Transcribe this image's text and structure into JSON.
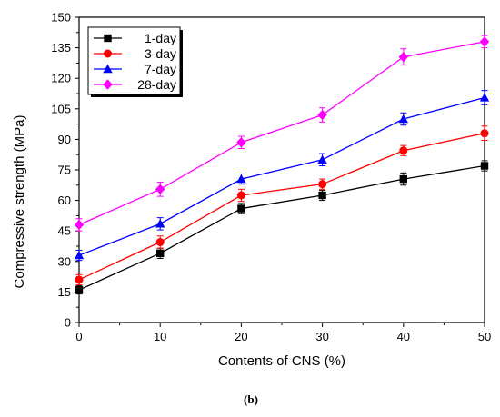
{
  "chart_data": {
    "type": "line",
    "xlabel": "Contents of CNS (%)",
    "ylabel": "Compressive strength (MPa)",
    "x": [
      0,
      10,
      20,
      30,
      40,
      50
    ],
    "xlim": [
      0,
      50
    ],
    "ylim": [
      0,
      150
    ],
    "xticks": [
      "0",
      "10",
      "20",
      "30",
      "40",
      "50"
    ],
    "yticks": [
      "0",
      "15",
      "30",
      "45",
      "60",
      "75",
      "90",
      "105",
      "120",
      "135",
      "150"
    ],
    "grid": false,
    "legend_position": "top-left",
    "series": [
      {
        "name": "1-day",
        "color": "#000000",
        "marker": "square",
        "values": [
          16,
          34,
          56,
          62.5,
          70.5,
          77
        ],
        "errors": [
          2,
          2.5,
          2.5,
          2.5,
          3,
          2.5
        ]
      },
      {
        "name": "3-day",
        "color": "#ff0000",
        "marker": "circle",
        "values": [
          21,
          39.5,
          62.5,
          68,
          84.5,
          93
        ],
        "errors": [
          2.5,
          3,
          3,
          2.5,
          2.5,
          3.5
        ]
      },
      {
        "name": "7-day",
        "color": "#0000ff",
        "marker": "triangle",
        "values": [
          33,
          48.5,
          70.5,
          80,
          100,
          110.5
        ],
        "errors": [
          2.5,
          3,
          2.5,
          3,
          3,
          3.5
        ]
      },
      {
        "name": "28-day",
        "color": "#ff00ff",
        "marker": "diamond",
        "values": [
          48,
          65.5,
          88.5,
          102,
          130.5,
          138
        ],
        "errors": [
          3,
          3.5,
          3,
          3.5,
          4,
          3
        ]
      }
    ],
    "caption": "(b)"
  }
}
